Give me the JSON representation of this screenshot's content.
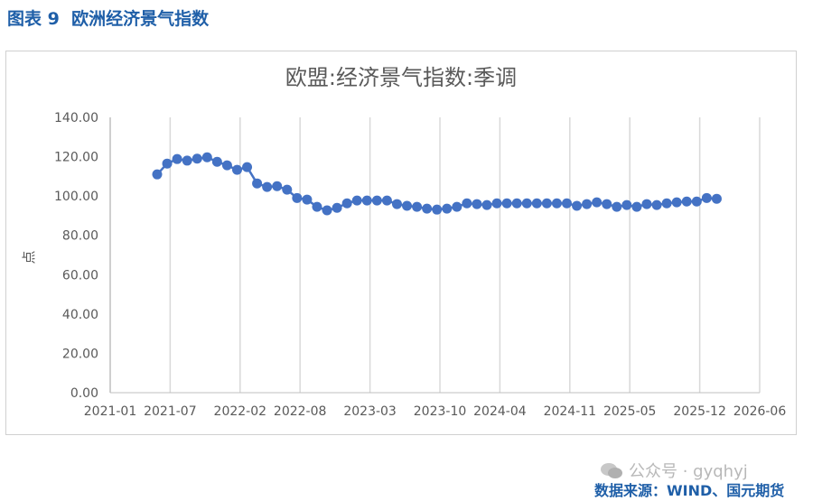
{
  "figure_title": "图表 9  欧洲经济景气指数",
  "watermark": "公众号 · gyqhyj",
  "source": "数据来源：WIND、国元期货",
  "colors": {
    "series": "#4472c4",
    "grid": "#d9d9d9",
    "title": "#1f5fa8"
  },
  "chart_data": {
    "type": "line",
    "title": "欧盟:经济景气指数:季调",
    "xlabel": "",
    "ylabel": "点",
    "ylim": [
      0,
      140
    ],
    "yticks": [
      "0.00",
      "20.00",
      "40.00",
      "60.00",
      "80.00",
      "100.00",
      "120.00",
      "140.00"
    ],
    "xticks": [
      "2021-01",
      "2021-07",
      "2022-02",
      "2022-08",
      "2023-03",
      "2023-10",
      "2024-04",
      "2024-11",
      "2025-05",
      "2025-12",
      "2026-06"
    ],
    "start": "2021-06",
    "values": [
      111,
      116.5,
      118.8,
      118,
      119,
      119.7,
      117.4,
      115.6,
      113.3,
      114.7,
      106.4,
      104.6,
      105,
      103.2,
      99,
      98.2,
      94.5,
      92.7,
      94,
      96.3,
      97.7,
      97.7,
      97.7,
      97.7,
      95.9,
      95,
      94.5,
      93.6,
      93.1,
      93.6,
      94.5,
      96.3,
      95.9,
      95.4,
      96.3,
      96.3,
      96.3,
      96.3,
      96.3,
      96.3,
      96.3,
      96.3,
      95,
      95.9,
      96.8,
      95.9,
      94.5,
      95.4,
      94.5,
      95.9,
      95.4,
      96.3,
      96.8,
      97.2,
      97.2,
      99,
      98.6
    ]
  }
}
